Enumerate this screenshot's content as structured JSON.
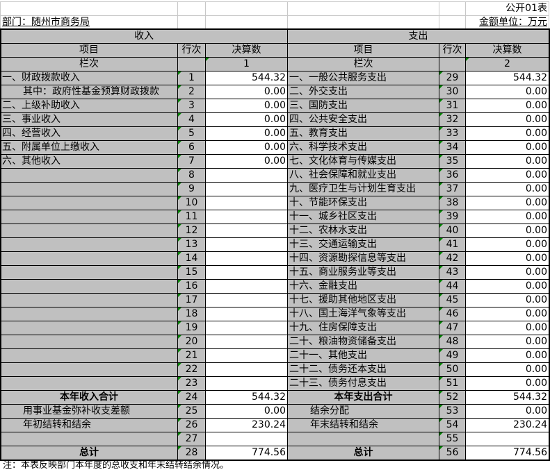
{
  "header": {
    "form_no": "公开01表",
    "department": "部门：随州市商务局",
    "unit": "金额单位：万元"
  },
  "sections": {
    "income": "收入",
    "expense": "支出"
  },
  "columns": {
    "item": "项目",
    "line": "行次",
    "amount": "决算数",
    "col_label": "栏次",
    "income_col": "1",
    "expense_col": "2"
  },
  "income_rows": [
    {
      "label": "一、财政拨款收入",
      "no": "1",
      "value": "544.32"
    },
    {
      "label": "其中：政府性基金预算财政拨款",
      "no": "2",
      "value": "0.00",
      "indent": true
    },
    {
      "label": "二、上级补助收入",
      "no": "3",
      "value": "0.00"
    },
    {
      "label": "三、事业收入",
      "no": "4",
      "value": "0.00"
    },
    {
      "label": "四、经营收入",
      "no": "5",
      "value": "0.00"
    },
    {
      "label": "五、附属单位上缴收入",
      "no": "6",
      "value": "0.00"
    },
    {
      "label": "六、其他收入",
      "no": "7",
      "value": "0.00"
    },
    {
      "label": "",
      "no": "8",
      "value": ""
    },
    {
      "label": "",
      "no": "9",
      "value": ""
    },
    {
      "label": "",
      "no": "10",
      "value": ""
    },
    {
      "label": "",
      "no": "11",
      "value": ""
    },
    {
      "label": "",
      "no": "12",
      "value": ""
    },
    {
      "label": "",
      "no": "13",
      "value": ""
    },
    {
      "label": "",
      "no": "14",
      "value": ""
    },
    {
      "label": "",
      "no": "15",
      "value": ""
    },
    {
      "label": "",
      "no": "16",
      "value": ""
    },
    {
      "label": "",
      "no": "17",
      "value": ""
    },
    {
      "label": "",
      "no": "18",
      "value": ""
    },
    {
      "label": "",
      "no": "19",
      "value": ""
    },
    {
      "label": "",
      "no": "20",
      "value": ""
    },
    {
      "label": "",
      "no": "21",
      "value": ""
    },
    {
      "label": "",
      "no": "22",
      "value": ""
    },
    {
      "label": "",
      "no": "23",
      "value": ""
    },
    {
      "label": "本年收入合计",
      "no": "24",
      "value": "544.32",
      "bold": true
    },
    {
      "label": "用事业基金弥补收支差额",
      "no": "25",
      "value": "0.00",
      "indent": true
    },
    {
      "label": "年初结转和结余",
      "no": "26",
      "value": "230.24",
      "indent": true
    },
    {
      "label": "",
      "no": "27",
      "value": ""
    },
    {
      "label": "总计",
      "no": "28",
      "value": "774.56",
      "bold": true
    }
  ],
  "expense_rows": [
    {
      "label": "一、一般公共服务支出",
      "no": "29",
      "value": "544.32"
    },
    {
      "label": "二、外交支出",
      "no": "30",
      "value": "0.00"
    },
    {
      "label": "三、国防支出",
      "no": "31",
      "value": "0.00"
    },
    {
      "label": "四、公共安全支出",
      "no": "32",
      "value": "0.00"
    },
    {
      "label": "五、教育支出",
      "no": "33",
      "value": "0.00"
    },
    {
      "label": "六、科学技术支出",
      "no": "34",
      "value": "0.00"
    },
    {
      "label": "七、文化体育与传媒支出",
      "no": "35",
      "value": "0.00"
    },
    {
      "label": "八、社会保障和就业支出",
      "no": "36",
      "value": "0.00"
    },
    {
      "label": "九、医疗卫生与计划生育支出",
      "no": "37",
      "value": "0.00"
    },
    {
      "label": "十、节能环保支出",
      "no": "38",
      "value": "0.00"
    },
    {
      "label": "十一、城乡社区支出",
      "no": "39",
      "value": "0.00"
    },
    {
      "label": "十二、农林水支出",
      "no": "40",
      "value": "0.00"
    },
    {
      "label": "十三、交通运输支出",
      "no": "41",
      "value": "0.00"
    },
    {
      "label": "十四、资源勘探信息等支出",
      "no": "42",
      "value": "0.00"
    },
    {
      "label": "十五、商业服务业等支出",
      "no": "43",
      "value": "0.00"
    },
    {
      "label": "十六、金融支出",
      "no": "44",
      "value": "0.00"
    },
    {
      "label": "十七、援助其他地区支出",
      "no": "45",
      "value": "0.00"
    },
    {
      "label": "十八、国土海洋气象等支出",
      "no": "46",
      "value": "0.00"
    },
    {
      "label": "十九、住房保障支出",
      "no": "47",
      "value": "0.00"
    },
    {
      "label": "二十、粮油物资储备支出",
      "no": "48",
      "value": "0.00"
    },
    {
      "label": "二十一、其他支出",
      "no": "49",
      "value": "0.00"
    },
    {
      "label": "二十二、债务还本支出",
      "no": "50",
      "value": "0.00"
    },
    {
      "label": "二十三、债务付息支出",
      "no": "51",
      "value": "0.00"
    },
    {
      "label": "本年支出合计",
      "no": "52",
      "value": "544.32",
      "bold": true
    },
    {
      "label": "结余分配",
      "no": "53",
      "value": "0.00",
      "indent": true
    },
    {
      "label": "年末结转和结余",
      "no": "54",
      "value": "230.24",
      "indent": true
    },
    {
      "label": "",
      "no": "55",
      "value": ""
    },
    {
      "label": "总计",
      "no": "56",
      "value": "774.56",
      "bold": true
    }
  ],
  "note": "注：本表反映部门本年度的总收支和年末结转结余情况。",
  "colors": {
    "header_fill": "#c0c0c0",
    "marker": "#008000"
  }
}
